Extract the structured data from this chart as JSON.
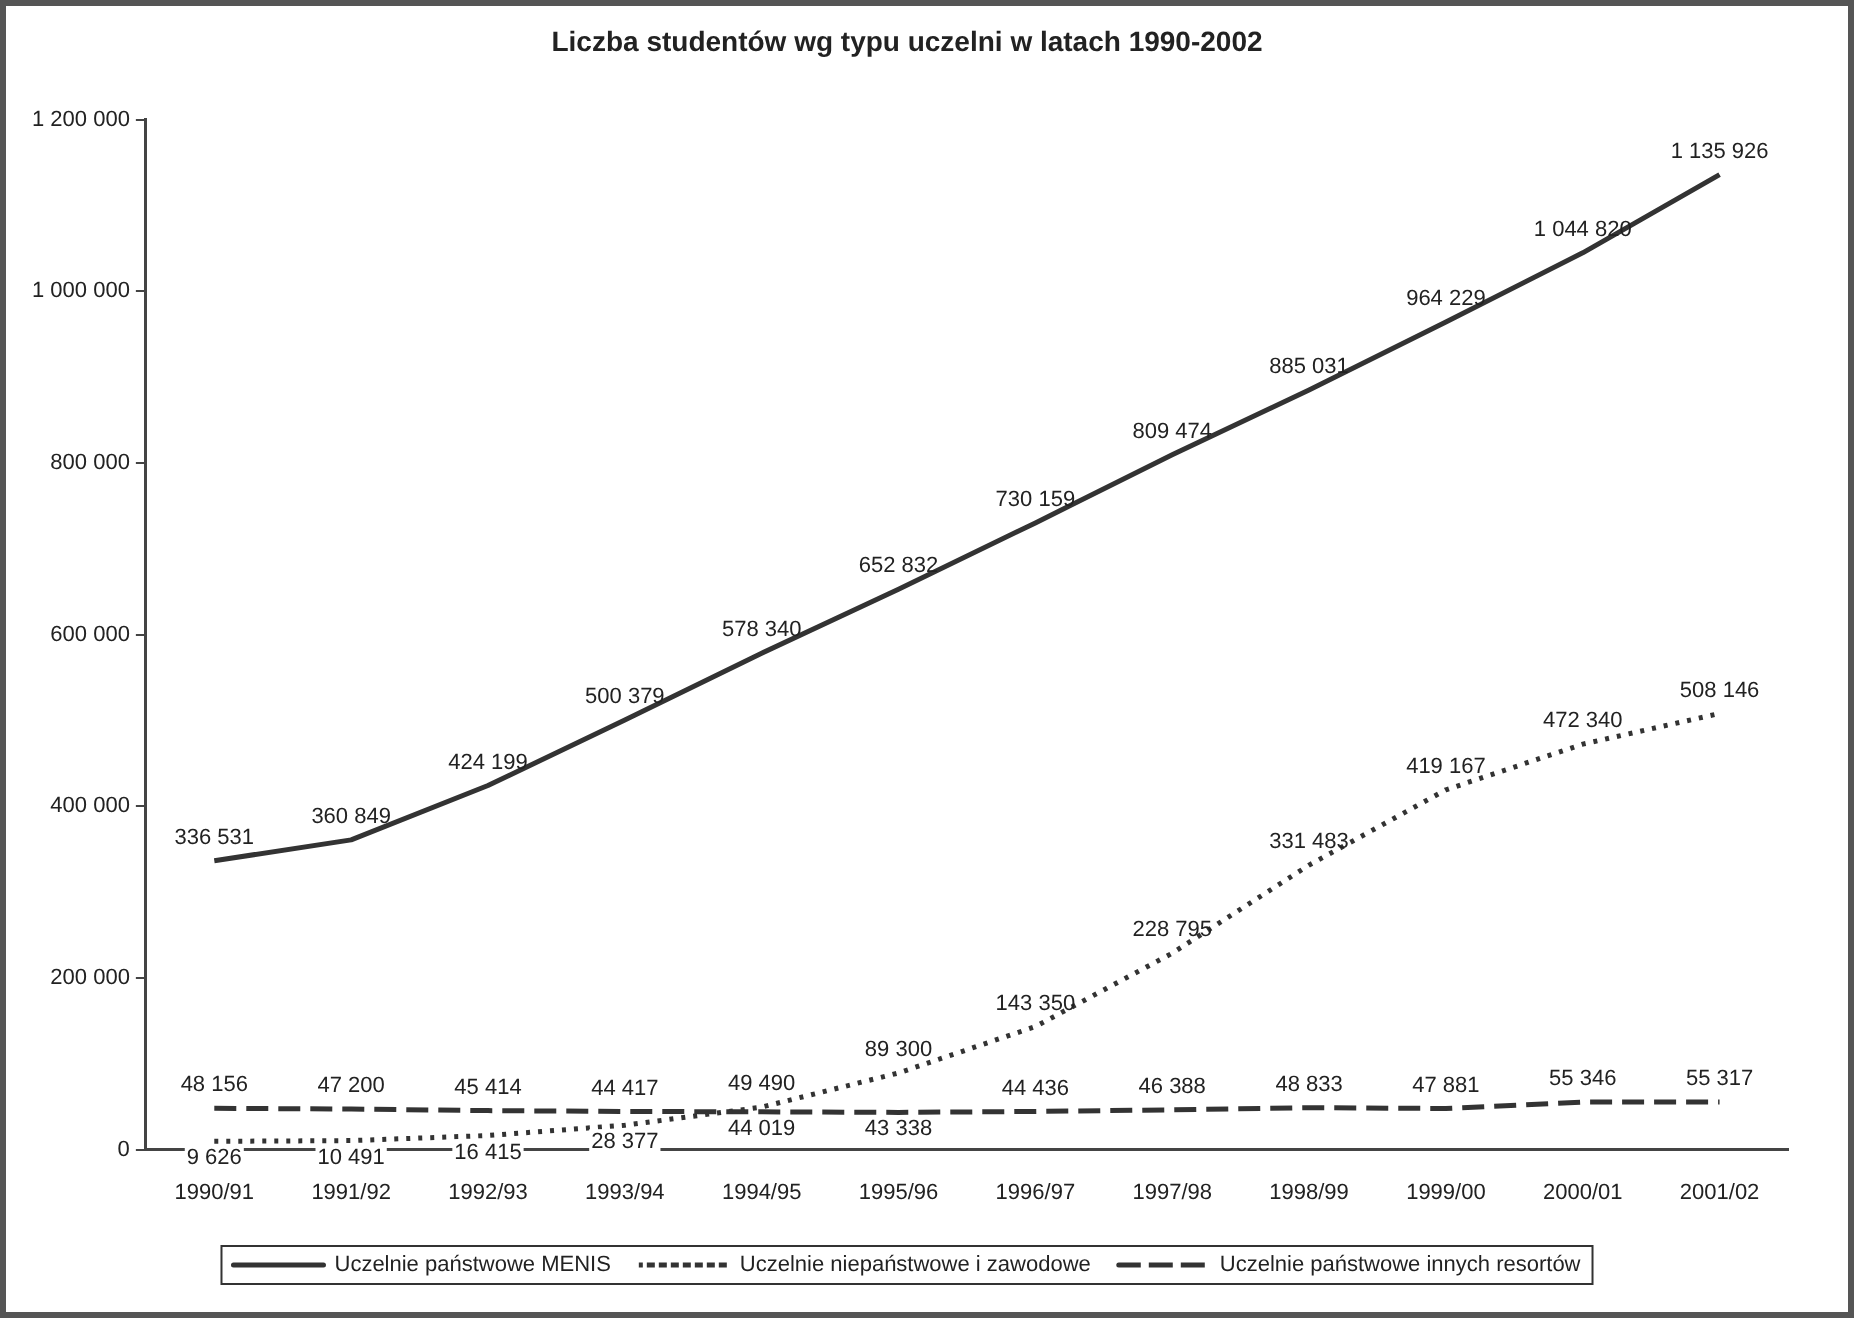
{
  "chart_data": {
    "type": "line",
    "title": "Liczba studentów wg typu uczelni w latach 1990-2002",
    "categories": [
      "1990/91",
      "1991/92",
      "1992/93",
      "1993/94",
      "1994/95",
      "1995/96",
      "1996/97",
      "1997/98",
      "1998/99",
      "1999/00",
      "2000/01",
      "2001/02"
    ],
    "series": [
      {
        "name": "Uczelnie państwowe MENIS",
        "color": "#333333",
        "line_style": "solid",
        "values": [
          336531,
          360849,
          424199,
          500379,
          578340,
          652832,
          730159,
          809474,
          885031,
          964229,
          1044820,
          1135926
        ]
      },
      {
        "name": "Uczelnie niepaństwowe i zawodowe",
        "color": "#333333",
        "line_style": "dotted",
        "values": [
          9626,
          10491,
          16415,
          28377,
          49490,
          89300,
          143350,
          228795,
          331483,
          419167,
          472340,
          508146
        ]
      },
      {
        "name": "Uczelnie państwowe innych resortów",
        "color": "#333333",
        "line_style": "dashed",
        "values": [
          48156,
          47200,
          45414,
          44417,
          44019,
          43338,
          44436,
          46388,
          48833,
          47881,
          55346,
          55317
        ]
      }
    ],
    "ylim": [
      0,
      1200000
    ],
    "yticks": [
      0,
      200000,
      400000,
      600000,
      800000,
      1000000,
      1200000
    ],
    "grid": false,
    "legend": "bottom",
    "marker": "none",
    "data_labels": true
  }
}
